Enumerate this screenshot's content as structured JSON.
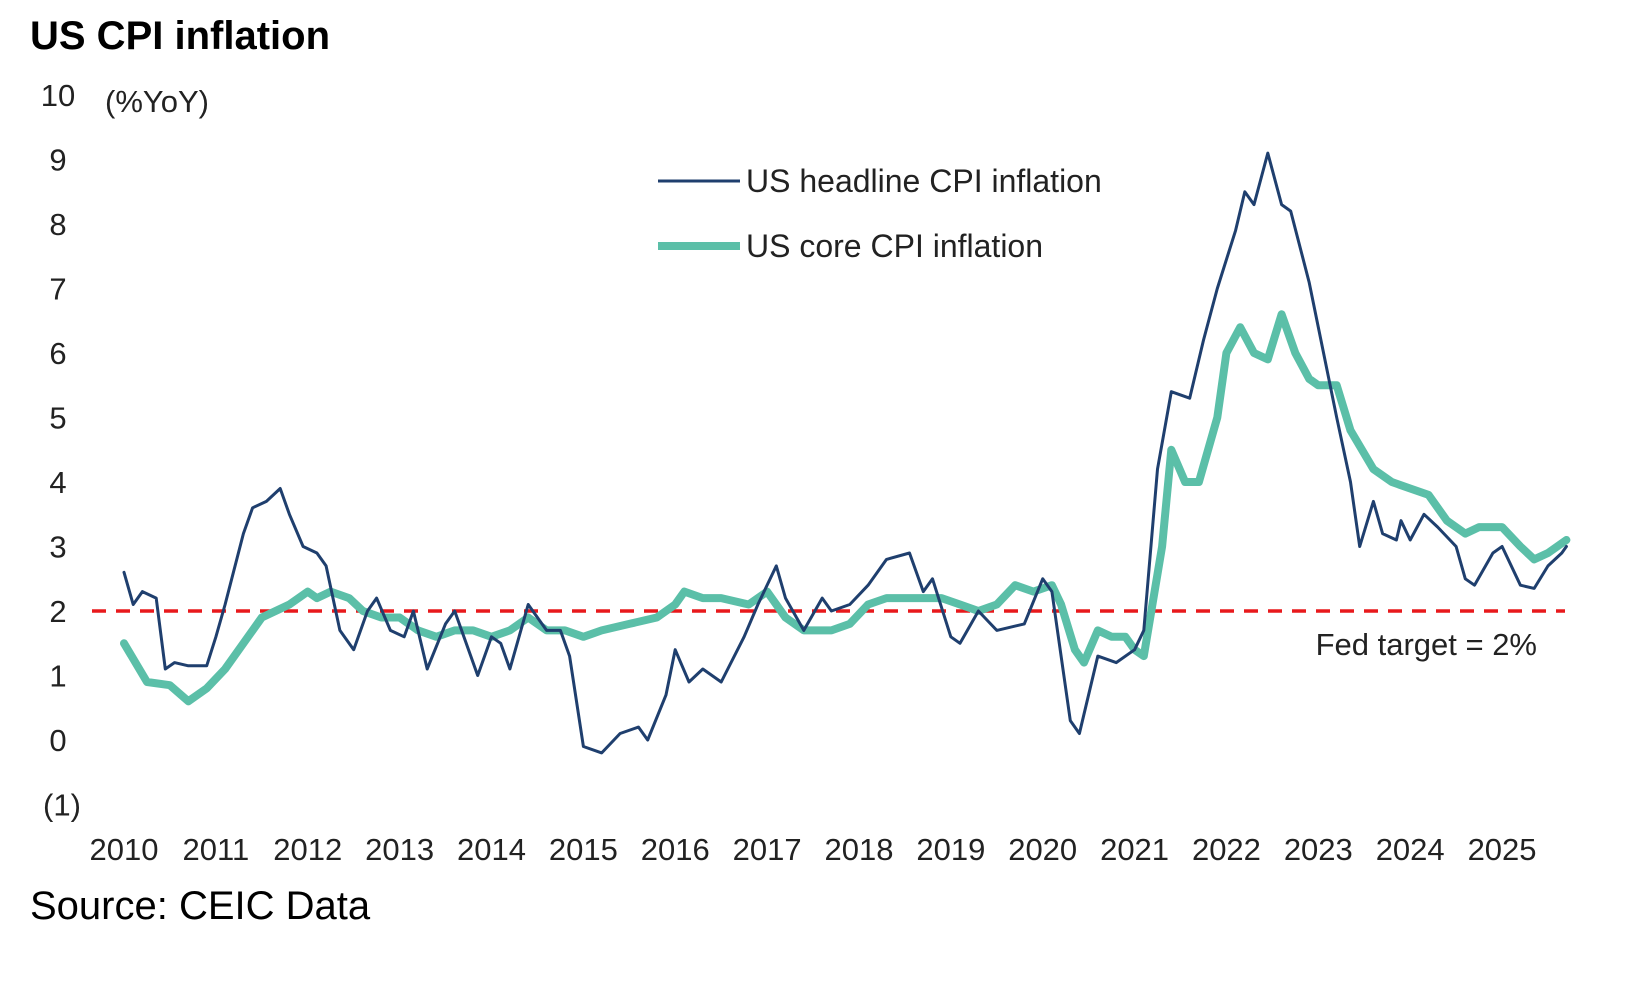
{
  "chart_data": {
    "type": "line",
    "title": "US CPI inflation",
    "ylabel": "(%YoY)",
    "xlabel": "",
    "source": "Source: CEIC Data",
    "ylim": [
      -1,
      10
    ],
    "xlim": [
      2010,
      2025.7
    ],
    "yticks": [
      -1,
      0,
      1,
      2,
      3,
      4,
      5,
      6,
      7,
      8,
      9,
      10
    ],
    "ytick_labels": [
      "(1)",
      "0",
      "1",
      "2",
      "3",
      "4",
      "5",
      "6",
      "7",
      "8",
      "9",
      "10"
    ],
    "xticks": [
      2010,
      2011,
      2012,
      2013,
      2014,
      2015,
      2016,
      2017,
      2018,
      2019,
      2020,
      2021,
      2022,
      2023,
      2024,
      2025
    ],
    "xtick_labels": [
      "2010",
      "2011",
      "2012",
      "2013",
      "2014",
      "2015",
      "2016",
      "2017",
      "2018",
      "2019",
      "2020",
      "2021",
      "2022",
      "2023",
      "2024",
      "2025"
    ],
    "grid": false,
    "legend_position": "top-center",
    "reference_line": {
      "value": 2,
      "label": "Fed target = 2%",
      "color": "#e8191c"
    },
    "series": [
      {
        "name": "US headline CPI inflation",
        "color": "#1f3f6e",
        "x": [
          2010.0,
          2010.1,
          2010.2,
          2010.35,
          2010.45,
          2010.55,
          2010.7,
          2010.9,
          2011.0,
          2011.1,
          2011.3,
          2011.4,
          2011.55,
          2011.7,
          2011.8,
          2011.95,
          2012.1,
          2012.2,
          2012.35,
          2012.5,
          2012.65,
          2012.75,
          2012.9,
          2013.05,
          2013.15,
          2013.3,
          2013.5,
          2013.6,
          2013.85,
          2014.0,
          2014.1,
          2014.2,
          2014.4,
          2014.6,
          2014.75,
          2014.85,
          2015.0,
          2015.2,
          2015.4,
          2015.6,
          2015.7,
          2015.9,
          2016.0,
          2016.15,
          2016.3,
          2016.5,
          2016.75,
          2016.9,
          2017.1,
          2017.2,
          2017.4,
          2017.6,
          2017.7,
          2017.9,
          2018.1,
          2018.3,
          2018.55,
          2018.7,
          2018.8,
          2019.0,
          2019.1,
          2019.3,
          2019.5,
          2019.8,
          2020.0,
          2020.1,
          2020.3,
          2020.4,
          2020.6,
          2020.8,
          2021.0,
          2021.1,
          2021.25,
          2021.4,
          2021.6,
          2021.75,
          2021.9,
          2022.1,
          2022.2,
          2022.3,
          2022.45,
          2022.6,
          2022.7,
          2022.9,
          2023.0,
          2023.2,
          2023.35,
          2023.45,
          2023.6,
          2023.7,
          2023.85,
          2023.9,
          2024.0,
          2024.15,
          2024.3,
          2024.5,
          2024.6,
          2024.7,
          2024.9,
          2025.0,
          2025.2,
          2025.35,
          2025.5,
          2025.65,
          2025.7
        ],
        "y": [
          2.6,
          2.1,
          2.3,
          2.2,
          1.1,
          1.2,
          1.15,
          1.15,
          1.6,
          2.1,
          3.2,
          3.6,
          3.7,
          3.9,
          3.5,
          3.0,
          2.9,
          2.7,
          1.7,
          1.4,
          2.0,
          2.2,
          1.7,
          1.6,
          2.0,
          1.1,
          1.8,
          2.0,
          1.0,
          1.6,
          1.5,
          1.1,
          2.1,
          1.7,
          1.7,
          1.3,
          -0.1,
          -0.2,
          0.1,
          0.2,
          0.0,
          0.7,
          1.4,
          0.9,
          1.1,
          0.9,
          1.6,
          2.1,
          2.7,
          2.2,
          1.7,
          2.2,
          2.0,
          2.1,
          2.4,
          2.8,
          2.9,
          2.3,
          2.5,
          1.6,
          1.5,
          2.0,
          1.7,
          1.8,
          2.5,
          2.3,
          0.3,
          0.1,
          1.3,
          1.2,
          1.4,
          1.7,
          4.2,
          5.4,
          5.3,
          6.2,
          7.0,
          7.9,
          8.5,
          8.3,
          9.1,
          8.3,
          8.2,
          7.1,
          6.4,
          5.0,
          4.0,
          3.0,
          3.7,
          3.2,
          3.1,
          3.4,
          3.1,
          3.5,
          3.3,
          3.0,
          2.5,
          2.4,
          2.9,
          3.0,
          2.4,
          2.35,
          2.7,
          2.9,
          3.0
        ]
      },
      {
        "name": "US core CPI inflation",
        "color": "#5bbfa8",
        "x": [
          2010.0,
          2010.25,
          2010.5,
          2010.7,
          2010.9,
          2011.1,
          2011.3,
          2011.5,
          2011.8,
          2012.0,
          2012.1,
          2012.25,
          2012.45,
          2012.6,
          2012.8,
          2013.0,
          2013.2,
          2013.4,
          2013.6,
          2013.8,
          2014.0,
          2014.2,
          2014.4,
          2014.6,
          2014.8,
          2015.0,
          2015.2,
          2015.5,
          2015.8,
          2016.0,
          2016.1,
          2016.3,
          2016.5,
          2016.8,
          2017.0,
          2017.2,
          2017.4,
          2017.7,
          2017.9,
          2018.1,
          2018.3,
          2018.6,
          2018.9,
          2019.1,
          2019.3,
          2019.5,
          2019.7,
          2019.9,
          2020.1,
          2020.2,
          2020.35,
          2020.45,
          2020.6,
          2020.75,
          2020.9,
          2021.0,
          2021.1,
          2021.3,
          2021.4,
          2021.55,
          2021.7,
          2021.9,
          2022.0,
          2022.15,
          2022.3,
          2022.45,
          2022.6,
          2022.75,
          2022.9,
          2023.0,
          2023.2,
          2023.35,
          2023.6,
          2023.8,
          2024.0,
          2024.2,
          2024.4,
          2024.6,
          2024.75,
          2025.0,
          2025.2,
          2025.35,
          2025.5,
          2025.7
        ],
        "y": [
          1.5,
          0.9,
          0.85,
          0.6,
          0.8,
          1.1,
          1.5,
          1.9,
          2.1,
          2.3,
          2.2,
          2.3,
          2.2,
          2.0,
          1.9,
          1.9,
          1.7,
          1.6,
          1.7,
          1.7,
          1.6,
          1.7,
          1.9,
          1.7,
          1.7,
          1.6,
          1.7,
          1.8,
          1.9,
          2.1,
          2.3,
          2.2,
          2.2,
          2.1,
          2.3,
          1.9,
          1.7,
          1.7,
          1.8,
          2.1,
          2.2,
          2.2,
          2.2,
          2.1,
          2.0,
          2.1,
          2.4,
          2.3,
          2.4,
          2.1,
          1.4,
          1.2,
          1.7,
          1.6,
          1.6,
          1.4,
          1.3,
          3.0,
          4.5,
          4.0,
          4.0,
          5.0,
          6.0,
          6.4,
          6.0,
          5.9,
          6.6,
          6.0,
          5.6,
          5.5,
          5.5,
          4.8,
          4.2,
          4.0,
          3.9,
          3.8,
          3.4,
          3.2,
          3.3,
          3.3,
          3.0,
          2.8,
          2.9,
          3.1
        ]
      }
    ]
  }
}
